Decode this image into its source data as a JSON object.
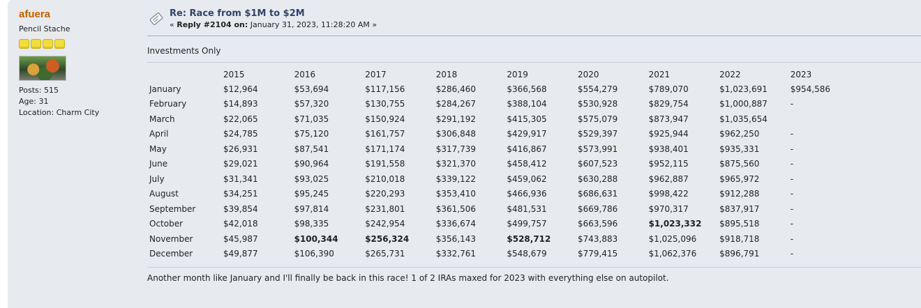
{
  "poster": {
    "name": "afuera",
    "title": "Pencil Stache",
    "star_count": 4,
    "posts": "Posts: 515",
    "age": "Age: 31",
    "location": "Location: Charm City"
  },
  "post": {
    "subject": "Re: Race from $1M to $2M",
    "reply_prefix": "« ",
    "reply_label": "Reply #2104 on:",
    "reply_date": " January 31, 2023, 11:28:20 AM »",
    "intro": "Investments Only",
    "footer": "Another month like January and I'll finally be back in this race!  1 of 2 IRAs maxed for 2023 with everything else on autopilot."
  },
  "table": {
    "years": [
      "2015",
      "2016",
      "2017",
      "2018",
      "2019",
      "2020",
      "2021",
      "2022",
      "2023"
    ],
    "rows": [
      {
        "month": "January",
        "values": [
          "$12,964",
          "$53,694",
          "$117,156",
          "$286,460",
          "$366,568",
          "$554,279",
          "$789,070",
          "$1,023,691",
          "$954,586"
        ],
        "bold": []
      },
      {
        "month": "February",
        "values": [
          "$14,893",
          "$57,320",
          "$130,755",
          "$284,267",
          "$388,104",
          "$530,928",
          "$829,754",
          "$1,000,887",
          "-"
        ],
        "bold": []
      },
      {
        "month": "March",
        "values": [
          "$22,065",
          "$71,035",
          "$150,924",
          "$291,192",
          "$415,305",
          "$575,079",
          "$873,947",
          "$1,035,654",
          ""
        ],
        "bold": []
      },
      {
        "month": "April",
        "values": [
          "$24,785",
          "$75,120",
          "$161,757",
          "$306,848",
          "$429,917",
          "$529,397",
          "$925,944",
          "$962,250",
          "-"
        ],
        "bold": []
      },
      {
        "month": "May",
        "values": [
          "$26,931",
          "$87,541",
          "$171,174",
          "$317,739",
          "$416,867",
          "$573,991",
          "$938,401",
          "$935,331",
          "-"
        ],
        "bold": []
      },
      {
        "month": "June",
        "values": [
          "$29,021",
          "$90,964",
          "$191,558",
          "$321,370",
          "$458,412",
          "$607,523",
          "$952,115",
          "$875,560",
          "-"
        ],
        "bold": []
      },
      {
        "month": "July",
        "values": [
          "$31,341",
          "$93,025",
          "$210,018",
          "$339,122",
          "$459,062",
          "$630,288",
          "$962,887",
          "$965,972",
          "-"
        ],
        "bold": []
      },
      {
        "month": "August",
        "values": [
          "$34,251",
          "$95,245",
          "$220,293",
          "$353,410",
          "$466,936",
          "$686,631",
          "$998,422",
          "$912,288",
          "-"
        ],
        "bold": []
      },
      {
        "month": "September",
        "values": [
          "$39,854",
          "$97,814",
          "$231,801",
          "$361,506",
          "$481,531",
          "$669,786",
          "$970,317",
          "$837,917",
          "-"
        ],
        "bold": []
      },
      {
        "month": "October",
        "values": [
          "$42,018",
          "$98,335",
          "$242,954",
          "$336,674",
          "$499,757",
          "$663,596",
          "$1,023,332",
          "$895,518",
          "-"
        ],
        "bold": [
          6
        ]
      },
      {
        "month": "November",
        "values": [
          "$45,987",
          "$100,344",
          "$256,324",
          "$356,143",
          "$528,712",
          "$743,883",
          "$1,025,096",
          "$918,718",
          "-"
        ],
        "bold": [
          1,
          2,
          4
        ]
      },
      {
        "month": "December",
        "values": [
          "$49,877",
          "$106,390",
          "$265,731",
          "$332,761",
          "$548,679",
          "$779,415",
          "$1,062,376",
          "$896,791",
          "-"
        ],
        "bold": []
      }
    ]
  },
  "colors": {
    "username": "#c06002",
    "subject": "#334466",
    "background": "#e7eaef",
    "star": "#f1dd3c"
  }
}
